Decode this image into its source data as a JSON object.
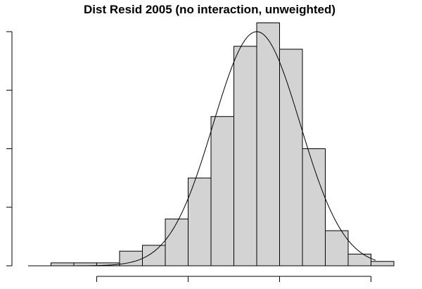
{
  "chart_data": {
    "type": "bar",
    "title": "Dist Resid 2005 (no interaction, unweighted)",
    "bins": [
      {
        "x0": -8.0,
        "x1": -7.5,
        "count": 1
      },
      {
        "x0": -7.5,
        "x1": -7.0,
        "count": 1
      },
      {
        "x0": -7.0,
        "x1": -6.5,
        "count": 1
      },
      {
        "x0": -6.5,
        "x1": -6.0,
        "count": 5
      },
      {
        "x0": -6.0,
        "x1": -5.5,
        "count": 7
      },
      {
        "x0": -5.5,
        "x1": -5.0,
        "count": 16
      },
      {
        "x0": -5.0,
        "x1": -4.5,
        "count": 30
      },
      {
        "x0": -4.5,
        "x1": -4.0,
        "count": 51
      },
      {
        "x0": -4.0,
        "x1": -3.5,
        "count": 75
      },
      {
        "x0": -3.5,
        "x1": -3.0,
        "count": 83
      },
      {
        "x0": -3.0,
        "x1": -2.5,
        "count": 74
      },
      {
        "x0": -2.5,
        "x1": -2.0,
        "count": 40
      },
      {
        "x0": -2.0,
        "x1": -1.5,
        "count": 12
      },
      {
        "x0": -1.5,
        "x1": -1.0,
        "count": 4
      },
      {
        "x0": -1.0,
        "x1": -0.5,
        "count": 1.5
      }
    ],
    "normal_curve": {
      "mean": -3.5,
      "sd": 0.95,
      "peak": 80
    },
    "xlim": [
      -8.5,
      -0.5
    ],
    "ylim": [
      0,
      80
    ],
    "x_ticks": [
      -7,
      -5,
      -3,
      -1
    ],
    "y_ticks": [
      0,
      20,
      40,
      60,
      80
    ],
    "bar_fill": "#d3d3d3",
    "bar_stroke": "#000000",
    "curve_color": "#000000"
  }
}
